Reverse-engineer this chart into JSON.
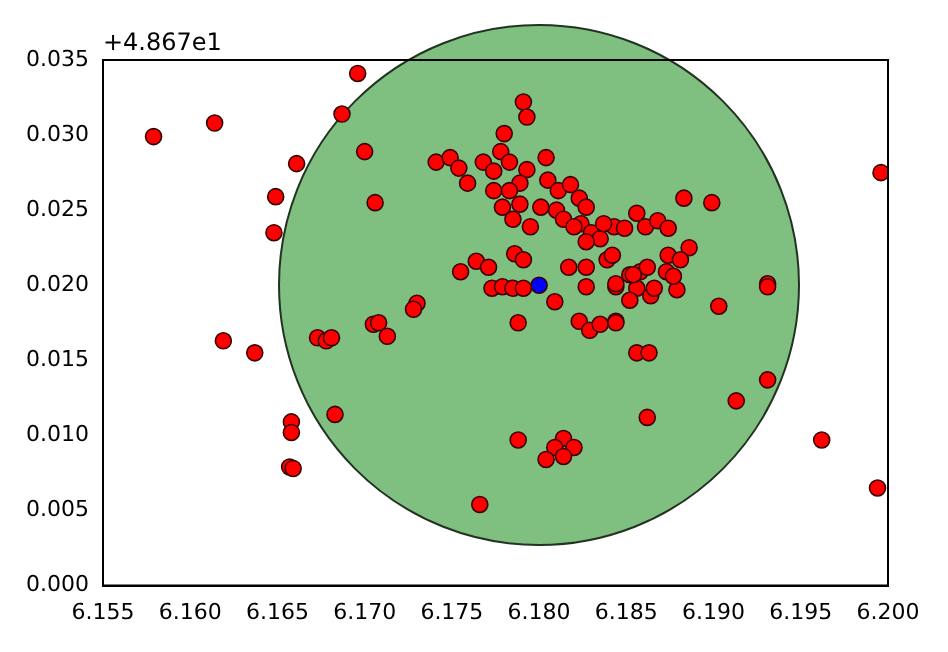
{
  "chart_data": {
    "type": "scatter",
    "marker": "circle",
    "grid": false,
    "legend": false,
    "annotations": [
      "+4.867e1"
    ],
    "xlim": [
      6.155,
      6.2
    ],
    "ylim": [
      0,
      0.035
    ],
    "xticks": [
      6.155,
      {
        "value": 6.16,
        "label": "6.160"
      },
      6.165,
      {
        "value": 6.17,
        "label": "6.170"
      },
      6.175,
      {
        "value": 6.18,
        "label": "6.180"
      },
      6.185,
      {
        "value": 6.19,
        "label": "6.190"
      },
      6.195,
      {
        "value": 6.2,
        "label": "6.200"
      }
    ],
    "yticks": [
      {
        "value": 0,
        "label": "0.000"
      },
      {
        "value": 0.005,
        "label": "0.005"
      },
      {
        "value": 0.01,
        "label": "0.010"
      },
      {
        "value": 0.015,
        "label": "0.015"
      },
      {
        "value": 0.02,
        "label": "0.020"
      },
      {
        "value": 0.025,
        "label": "0.025"
      },
      {
        "value": 0.03,
        "label": "0.030"
      },
      {
        "value": 0.035,
        "label": "0.035"
      }
    ],
    "series": [
      {
        "color": "#ff0000",
        "x": [
          6.1579,
          6.1614,
          6.1696,
          6.1687,
          6.17,
          6.1661,
          6.1649,
          6.1648,
          6.1706,
          6.1619,
          6.1637,
          6.1658,
          6.1658,
          6.1657,
          6.1659,
          6.1683,
          6.1673,
          6.1678,
          6.1681,
          6.1705,
          6.1708,
          6.1713,
          6.173,
          6.1728,
          6.1755,
          6.1764,
          6.1771,
          6.1786,
          6.1791,
          6.1773,
          6.1779,
          6.1785,
          6.1791,
          6.1809,
          6.1788,
          6.1817,
          6.1827,
          6.1827,
          6.1839,
          6.1844,
          6.1852,
          6.1858,
          6.1856,
          6.1852,
          6.1864,
          6.1879,
          6.1873,
          6.1823,
          6.1829,
          6.1835,
          6.1844,
          6.1856,
          6.1863,
          6.1862,
          6.1788,
          6.1814,
          6.1809,
          6.182,
          6.1804,
          6.1814,
          6.1766,
          6.1791,
          6.1793,
          6.178,
          6.1741,
          6.1749,
          6.1754,
          6.1759,
          6.1768,
          6.1778,
          6.1774,
          6.1783,
          6.1793,
          6.1804,
          6.1789,
          6.1774,
          6.1783,
          6.1779,
          6.1789,
          6.1801,
          6.1785,
          6.1795,
          6.1805,
          6.1811,
          6.1818,
          6.1823,
          6.1827,
          6.181,
          6.1814,
          6.1824,
          6.183,
          6.1835,
          6.1827,
          6.1843,
          6.1849,
          6.1856,
          6.1861,
          6.1837,
          6.182,
          6.1996,
          6.1883,
          6.1899,
          6.1868,
          6.1874,
          6.1886,
          6.1874,
          6.1881,
          6.1842,
          6.1862,
          6.1877,
          6.1854,
          6.1866,
          6.1844,
          6.1931,
          6.1931,
          6.1903,
          6.1844,
          6.1931,
          6.1913,
          6.1962,
          6.1994
        ],
        "values": [
          0.0299,
          0.0308,
          0.0341,
          0.0314,
          0.0289,
          0.0281,
          0.0259,
          0.0235,
          0.0255,
          0.0163,
          0.0155,
          0.0109,
          0.0102,
          0.0079,
          0.0078,
          0.0114,
          0.0165,
          0.0163,
          0.0165,
          0.0174,
          0.0175,
          0.0166,
          0.0188,
          0.0184,
          0.0209,
          0.0216,
          0.0212,
          0.0221,
          0.0217,
          0.0198,
          0.0199,
          0.0198,
          0.0198,
          0.0189,
          0.0175,
          0.0212,
          0.0212,
          0.0199,
          0.0217,
          0.0199,
          0.0207,
          0.0209,
          0.0198,
          0.019,
          0.0193,
          0.0197,
          0.0209,
          0.0176,
          0.017,
          0.0174,
          0.0176,
          0.0155,
          0.0155,
          0.0112,
          0.0097,
          0.0098,
          0.0092,
          0.0092,
          0.0084,
          0.0086,
          0.0054,
          0.0322,
          0.0312,
          0.0301,
          0.0282,
          0.0285,
          0.0278,
          0.0268,
          0.0282,
          0.0289,
          0.0276,
          0.0282,
          0.0277,
          0.0285,
          0.0268,
          0.0263,
          0.0263,
          0.0252,
          0.0254,
          0.0252,
          0.0244,
          0.0239,
          0.027,
          0.0263,
          0.0267,
          0.0258,
          0.0252,
          0.025,
          0.0244,
          0.0241,
          0.0235,
          0.0231,
          0.0229,
          0.0239,
          0.0238,
          0.0248,
          0.0239,
          0.0241,
          0.0239,
          0.0275,
          0.0258,
          0.0255,
          0.0243,
          0.0238,
          0.0225,
          0.022,
          0.0217,
          0.022,
          0.0212,
          0.0206,
          0.0207,
          0.0198,
          0.0201,
          0.0201,
          0.0199,
          0.0186,
          0.0175,
          0.0137,
          0.0123,
          0.0097,
          0.0065
        ]
      },
      {
        "color": "#0000ff",
        "x": [
          6.18
        ],
        "values": [
          0.02
        ]
      }
    ]
  }
}
